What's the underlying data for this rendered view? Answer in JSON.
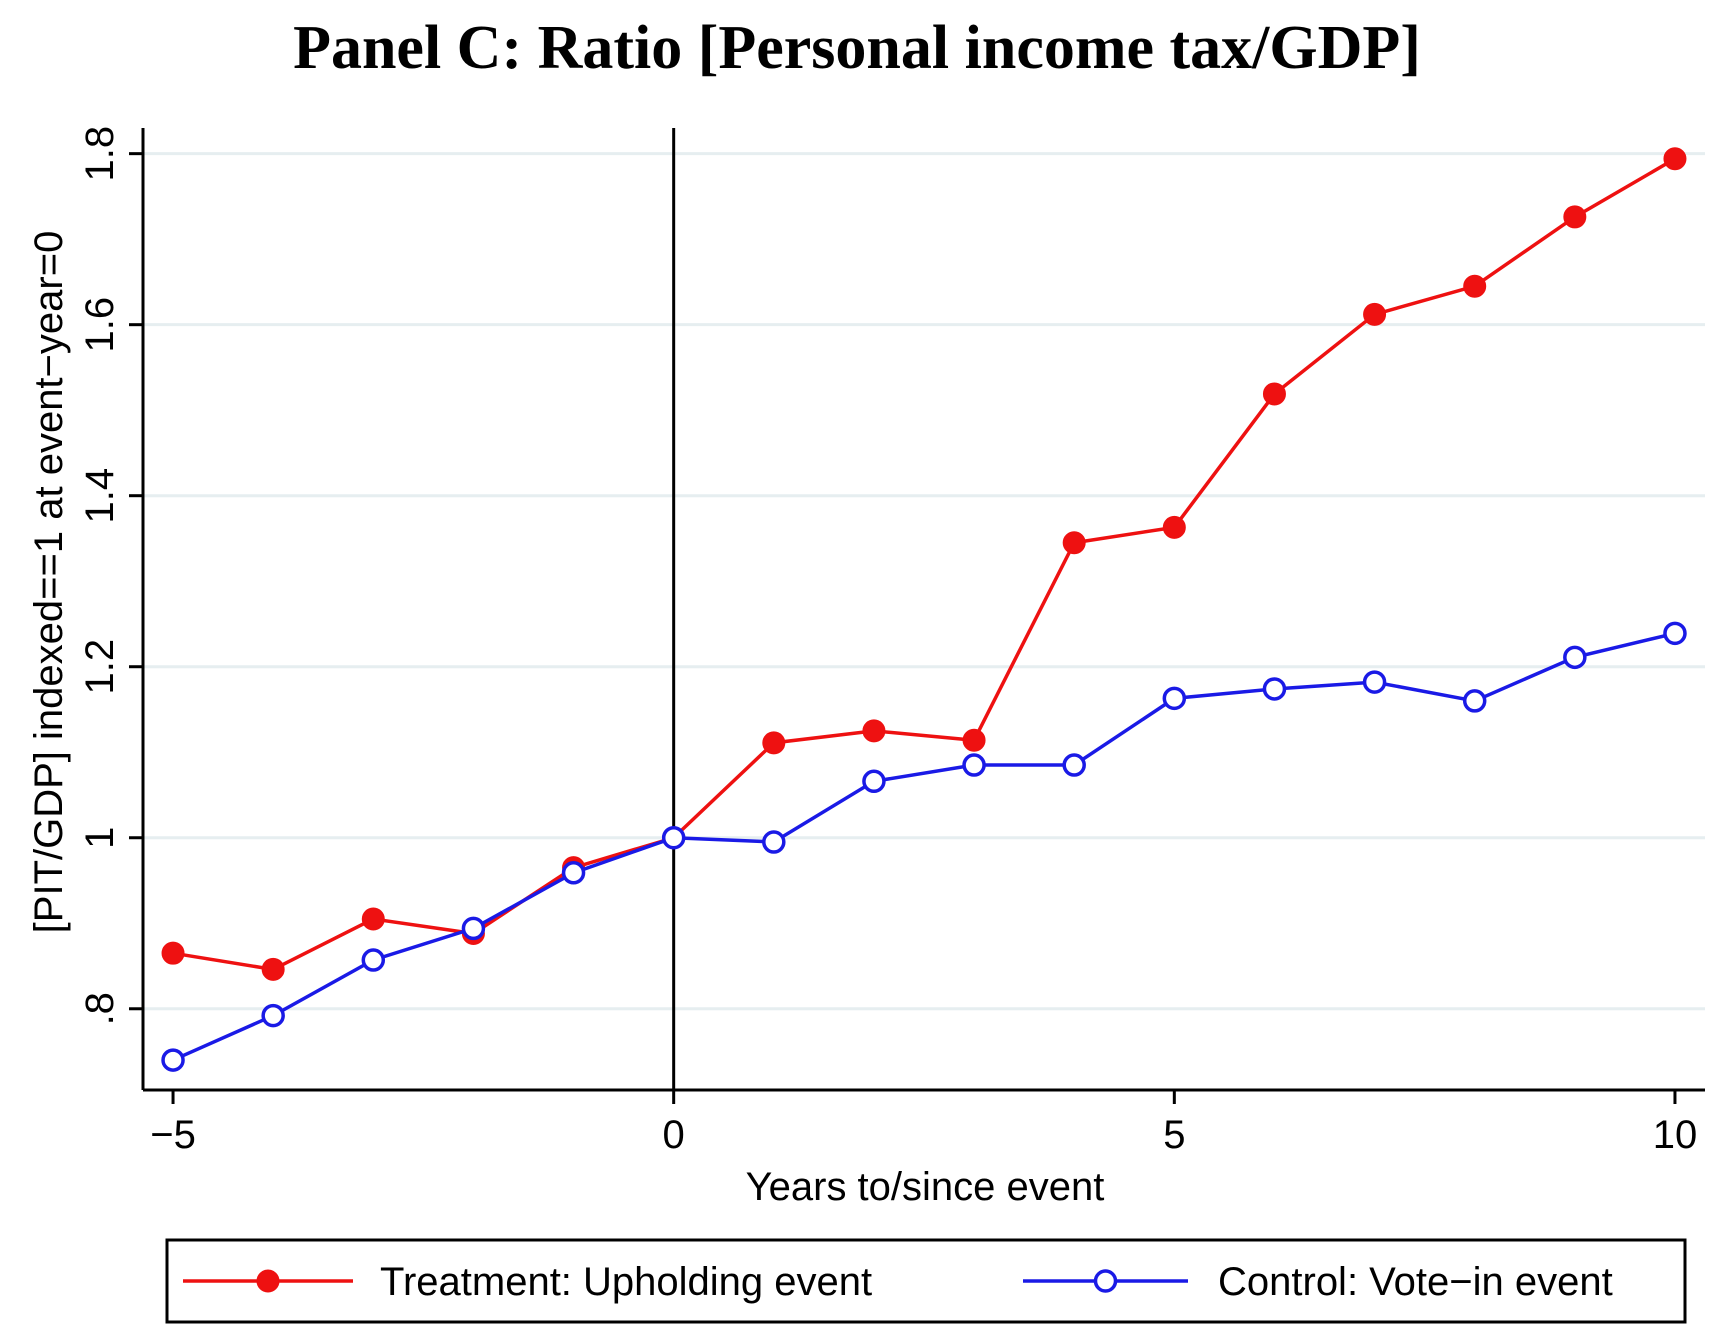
{
  "chart_data": {
    "type": "line",
    "title": "Panel C: Ratio [Personal income tax/GDP]",
    "xlabel": "Years to/since event",
    "ylabel": "[PIT/GDP] indexed==1 at event−year=0",
    "x": [
      -5,
      -4,
      -3,
      -2,
      -1,
      0,
      1,
      2,
      3,
      4,
      5,
      6,
      7,
      8,
      9,
      10
    ],
    "xlim": [
      -5.3,
      10.3
    ],
    "ylim": [
      0.705,
      1.83
    ],
    "xticks": [
      -5,
      0,
      5,
      10
    ],
    "xtick_labels": [
      "−5",
      "0",
      "5",
      "10"
    ],
    "yticks": [
      0.8,
      1,
      1.2,
      1.4,
      1.6,
      1.8
    ],
    "ytick_labels": [
      ".8",
      "1",
      "1.2",
      "1.4",
      "1.6",
      "1.8"
    ],
    "grid": "horizontal",
    "reference_line_x": 0,
    "legend_position": "bottom",
    "series": [
      {
        "name": "Treatment: Upholding event",
        "color": "#ee1111",
        "marker": "filled-circle",
        "values": [
          0.865,
          0.846,
          0.905,
          0.888,
          0.965,
          1.0,
          1.111,
          1.125,
          1.114,
          1.345,
          1.363,
          1.519,
          1.612,
          1.645,
          1.726,
          1.794
        ]
      },
      {
        "name": "Control: Vote−in event",
        "color": "#1a1ae6",
        "marker": "hollow-circle",
        "values": [
          0.74,
          0.792,
          0.857,
          0.894,
          0.959,
          1.0,
          0.995,
          1.066,
          1.085,
          1.085,
          1.163,
          1.174,
          1.182,
          1.16,
          1.211,
          1.239
        ]
      }
    ]
  }
}
